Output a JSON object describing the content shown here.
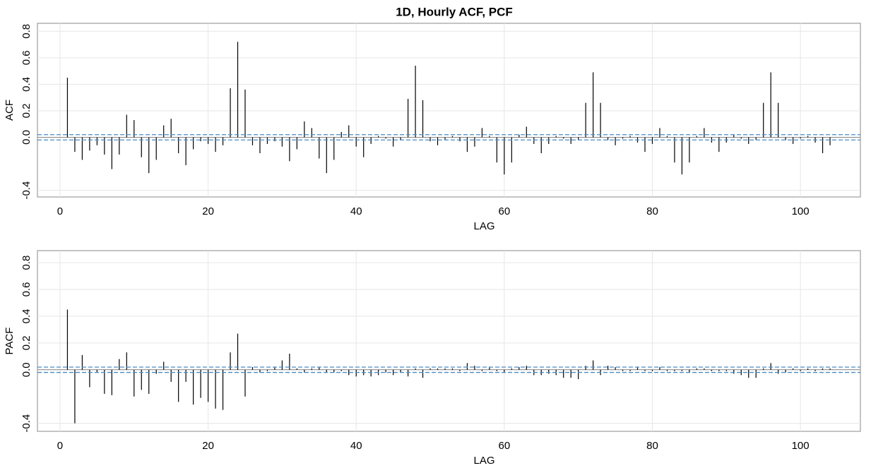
{
  "chart_data": [
    {
      "type": "bar",
      "title": "1D, Hourly ACF, PCF",
      "xlabel": "LAG",
      "ylabel": "ACF",
      "color": "#000000",
      "ci_color": "#4a8bc4",
      "conf_limits": [
        -0.02,
        0.02
      ],
      "xlim": [
        -3.05,
        108.1
      ],
      "xticks": [
        0,
        20,
        40,
        60,
        80,
        100
      ],
      "ylim": [
        -0.45,
        0.86
      ],
      "yticks": [
        -0.4,
        {
          "value": 0,
          "label": "0.0"
        },
        0.2,
        0.4,
        0.6,
        0.8
      ],
      "grid": true,
      "x": [
        1,
        2,
        3,
        4,
        5,
        6,
        7,
        8,
        9,
        10,
        11,
        12,
        13,
        14,
        15,
        16,
        17,
        18,
        19,
        20,
        21,
        22,
        23,
        24,
        25,
        26,
        27,
        28,
        29,
        30,
        31,
        32,
        33,
        34,
        35,
        36,
        37,
        38,
        39,
        40,
        41,
        42,
        43,
        44,
        45,
        46,
        47,
        48,
        49,
        50,
        51,
        52,
        53,
        54,
        55,
        56,
        57,
        58,
        59,
        60,
        61,
        62,
        63,
        64,
        65,
        66,
        67,
        68,
        69,
        70,
        71,
        72,
        73,
        74,
        75,
        76,
        77,
        78,
        79,
        80,
        81,
        82,
        83,
        84,
        85,
        86,
        87,
        88,
        89,
        90,
        91,
        92,
        93,
        94,
        95,
        96,
        97,
        98,
        99,
        100,
        101,
        102,
        103,
        104
      ],
      "values": [
        0.45,
        -0.11,
        -0.17,
        -0.1,
        -0.06,
        -0.13,
        -0.24,
        -0.13,
        0.17,
        0.13,
        -0.15,
        -0.27,
        -0.17,
        0.09,
        0.14,
        -0.12,
        -0.21,
        -0.09,
        -0.03,
        -0.05,
        -0.11,
        -0.06,
        0.37,
        0.72,
        0.36,
        -0.06,
        -0.12,
        -0.05,
        -0.03,
        -0.07,
        -0.18,
        -0.09,
        0.12,
        0.07,
        -0.16,
        -0.27,
        -0.17,
        0.04,
        0.09,
        -0.07,
        -0.15,
        -0.05,
        0.01,
        -0.01,
        -0.07,
        -0.02,
        0.29,
        0.54,
        0.28,
        -0.03,
        -0.06,
        -0.02,
        0.01,
        -0.03,
        -0.11,
        -0.07,
        0.07,
        0.01,
        -0.19,
        -0.28,
        -0.19,
        0.02,
        0.08,
        -0.05,
        -0.12,
        -0.05,
        0.01,
        -0.01,
        -0.05,
        -0.02,
        0.26,
        0.49,
        0.26,
        -0.02,
        -0.06,
        -0.01,
        0.01,
        -0.04,
        -0.11,
        -0.05,
        0.07,
        0.01,
        -0.19,
        -0.28,
        -0.19,
        0.01,
        0.07,
        -0.04,
        -0.11,
        -0.04,
        0.02,
        -0.01,
        -0.05,
        -0.02,
        0.26,
        0.49,
        0.26,
        -0.02,
        -0.05,
        -0.01,
        0.01,
        -0.04,
        -0.12,
        -0.06
      ]
    },
    {
      "type": "bar",
      "xlabel": "LAG",
      "ylabel": "PACF",
      "color": "#000000",
      "ci_color": "#4a8bc4",
      "conf_limits": [
        -0.02,
        0.02
      ],
      "xlim": [
        -3.05,
        108.1
      ],
      "xticks": [
        0,
        20,
        40,
        60,
        80,
        100
      ],
      "ylim": [
        -0.46,
        0.89
      ],
      "yticks": [
        -0.4,
        {
          "value": 0,
          "label": "0.0"
        },
        0.2,
        0.4,
        0.6,
        0.8
      ],
      "grid": true,
      "x": [
        1,
        2,
        3,
        4,
        5,
        6,
        7,
        8,
        9,
        10,
        11,
        12,
        13,
        14,
        15,
        16,
        17,
        18,
        19,
        20,
        21,
        22,
        23,
        24,
        25,
        26,
        27,
        28,
        29,
        30,
        31,
        32,
        33,
        34,
        35,
        36,
        37,
        38,
        39,
        40,
        41,
        42,
        43,
        44,
        45,
        46,
        47,
        48,
        49,
        50,
        51,
        52,
        53,
        54,
        55,
        56,
        57,
        58,
        59,
        60,
        61,
        62,
        63,
        64,
        65,
        66,
        67,
        68,
        69,
        70,
        71,
        72,
        73,
        74,
        75,
        76,
        77,
        78,
        79,
        80,
        81,
        82,
        83,
        84,
        85,
        86,
        87,
        88,
        89,
        90,
        91,
        92,
        93,
        94,
        95,
        96,
        97,
        98,
        99,
        100,
        101,
        102,
        103,
        104
      ],
      "values": [
        0.45,
        -0.4,
        0.11,
        -0.13,
        -0.02,
        -0.18,
        -0.19,
        0.08,
        0.13,
        -0.2,
        -0.15,
        -0.18,
        -0.03,
        0.06,
        -0.09,
        -0.24,
        -0.09,
        -0.26,
        -0.21,
        -0.24,
        -0.29,
        -0.3,
        0.13,
        0.27,
        -0.2,
        0.02,
        -0.02,
        -0.01,
        0.02,
        0.07,
        0.12,
        0.01,
        -0.02,
        0.01,
        0.02,
        -0.02,
        -0.02,
        -0.01,
        -0.04,
        -0.05,
        -0.04,
        -0.05,
        -0.04,
        -0.02,
        -0.04,
        -0.02,
        -0.05,
        0.01,
        -0.06,
        0.01,
        0.01,
        0.01,
        0.01,
        -0.01,
        0.05,
        0.03,
        -0.01,
        0.02,
        -0.01,
        -0.02,
        0.01,
        0.02,
        0.03,
        -0.04,
        -0.04,
        -0.03,
        -0.04,
        -0.06,
        -0.06,
        -0.07,
        0.03,
        0.07,
        -0.04,
        0.03,
        0.02,
        -0.01,
        -0.01,
        0.02,
        -0.01,
        -0.01,
        0.02,
        -0.01,
        -0.01,
        -0.01,
        -0.02,
        0.01,
        0.01,
        -0.01,
        -0.01,
        -0.01,
        -0.03,
        -0.04,
        -0.06,
        -0.06,
        0.01,
        0.05,
        -0.03,
        -0.02,
        0.01,
        -0.01,
        0.01,
        -0.01,
        0.01,
        0.01
      ]
    }
  ]
}
